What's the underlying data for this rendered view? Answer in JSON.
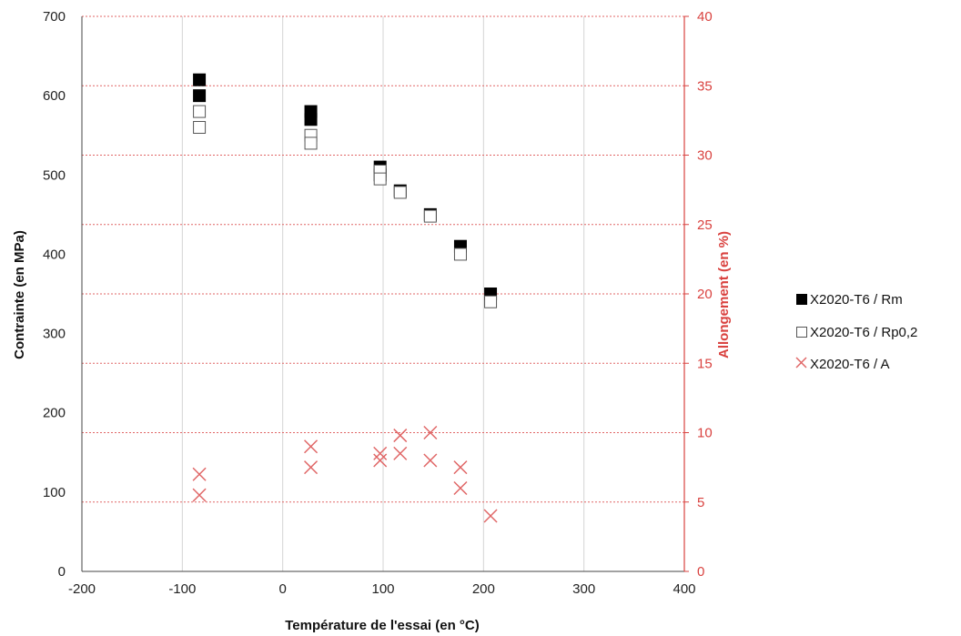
{
  "chart_data": {
    "type": "scatter",
    "title": "",
    "xlabel": "Température de l'essai (en °C)",
    "ylabel": "Contrainte (en MPa)",
    "y2label": "Allongement (en %)",
    "xlim": [
      -200,
      400
    ],
    "ylim": [
      0,
      700
    ],
    "y2lim": [
      0,
      40
    ],
    "xticks": [
      "-200",
      "-100",
      "0",
      "100",
      "200",
      "300",
      "400"
    ],
    "yticks": [
      "0",
      "100",
      "200",
      "300",
      "400",
      "500",
      "600",
      "700"
    ],
    "y2ticks": [
      "0",
      "5",
      "10",
      "15",
      "20",
      "25",
      "30",
      "35",
      "40"
    ],
    "grid": "vertical solid grey; horizontal dashed red on secondary axis",
    "legend_position": "right",
    "series": [
      {
        "name": "X2020-T6 / Rm",
        "axis": "left",
        "marker": "filled-square",
        "color": "#000000",
        "points": [
          {
            "x": -83,
            "y": 620
          },
          {
            "x": -83,
            "y": 600
          },
          {
            "x": 28,
            "y": 580
          },
          {
            "x": 28,
            "y": 570
          },
          {
            "x": 97,
            "y": 510
          },
          {
            "x": 97,
            "y": 500
          },
          {
            "x": 117,
            "y": 480
          },
          {
            "x": 147,
            "y": 450
          },
          {
            "x": 177,
            "y": 410
          },
          {
            "x": 207,
            "y": 350
          }
        ]
      },
      {
        "name": "X2020-T6 / Rp0,2",
        "axis": "left",
        "marker": "open-square",
        "color": "#555555",
        "points": [
          {
            "x": -83,
            "y": 580
          },
          {
            "x": -83,
            "y": 560
          },
          {
            "x": 28,
            "y": 550
          },
          {
            "x": 28,
            "y": 540
          },
          {
            "x": 97,
            "y": 505
          },
          {
            "x": 97,
            "y": 495
          },
          {
            "x": 117,
            "y": 478
          },
          {
            "x": 147,
            "y": 448
          },
          {
            "x": 177,
            "y": 400
          },
          {
            "x": 207,
            "y": 340
          }
        ]
      },
      {
        "name": "X2020-T6 / A",
        "axis": "right",
        "marker": "cross",
        "color": "#e06666",
        "points": [
          {
            "x": -83,
            "y": 7
          },
          {
            "x": -83,
            "y": 5.5
          },
          {
            "x": 28,
            "y": 9
          },
          {
            "x": 28,
            "y": 7.5
          },
          {
            "x": 97,
            "y": 8.5
          },
          {
            "x": 97,
            "y": 8
          },
          {
            "x": 117,
            "y": 9.8
          },
          {
            "x": 117,
            "y": 8.5
          },
          {
            "x": 147,
            "y": 10
          },
          {
            "x": 147,
            "y": 8
          },
          {
            "x": 177,
            "y": 7.5
          },
          {
            "x": 177,
            "y": 6
          },
          {
            "x": 207,
            "y": 4
          }
        ]
      }
    ]
  }
}
